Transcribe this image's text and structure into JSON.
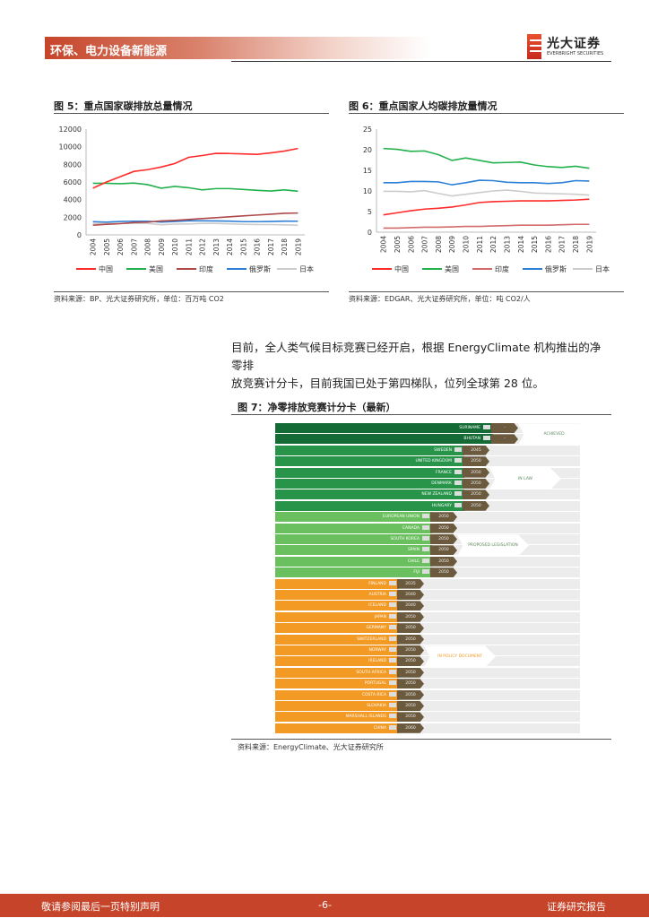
{
  "header": {
    "section": "环保、电力设备新能源",
    "logo_cn": "光大证券",
    "logo_en": "EVERBRIGHT SECURITIES"
  },
  "figure5": {
    "title": "图 5：重点国家碳排放总量情况",
    "source": "资料来源：BP、光大证券研究所，单位：百万吨 CO2"
  },
  "figure6": {
    "title": "图 6：重点国家人均碳排放量情况",
    "source": "资料来源：EDGAR、光大证券研究所，单位：吨 CO2/人"
  },
  "chart_data": [
    {
      "type": "line",
      "ylim": [
        0,
        12000
      ],
      "yticks": [
        0,
        2000,
        4000,
        6000,
        8000,
        10000,
        12000
      ],
      "grid": false,
      "legend": "bottom",
      "x": [
        "2004",
        "2005",
        "2006",
        "2007",
        "2008",
        "2009",
        "2010",
        "2011",
        "2012",
        "2013",
        "2014",
        "2015",
        "2016",
        "2017",
        "2018",
        "2019"
      ],
      "series": [
        {
          "name": "中国",
          "color": "#ff2a2a",
          "values": [
            5300,
            6000,
            6600,
            7200,
            7400,
            7700,
            8100,
            8800,
            9000,
            9250,
            9230,
            9180,
            9130,
            9300,
            9500,
            9800
          ]
        },
        {
          "name": "美国",
          "color": "#22b14c",
          "values": [
            5850,
            5850,
            5800,
            5880,
            5700,
            5300,
            5500,
            5350,
            5100,
            5250,
            5250,
            5150,
            5050,
            4980,
            5100,
            4950
          ]
        },
        {
          "name": "印度",
          "color": "#b04a4a",
          "values": [
            1100,
            1200,
            1270,
            1400,
            1450,
            1580,
            1650,
            1750,
            1850,
            1950,
            2050,
            2150,
            2250,
            2350,
            2450,
            2480
          ]
        },
        {
          "name": "俄罗斯",
          "color": "#2e7fd6",
          "values": [
            1500,
            1450,
            1520,
            1550,
            1550,
            1450,
            1520,
            1600,
            1600,
            1580,
            1560,
            1500,
            1500,
            1520,
            1560,
            1550
          ]
        },
        {
          "name": "日本",
          "color": "#cccccc",
          "values": [
            1300,
            1300,
            1300,
            1320,
            1300,
            1150,
            1230,
            1240,
            1300,
            1300,
            1250,
            1200,
            1180,
            1170,
            1140,
            1100
          ]
        }
      ]
    },
    {
      "type": "line",
      "ylim": [
        0,
        25
      ],
      "yticks": [
        0,
        5,
        10,
        15,
        20,
        25
      ],
      "grid": false,
      "legend": "bottom",
      "x": [
        "2004",
        "2005",
        "2006",
        "2007",
        "2008",
        "2009",
        "2010",
        "2011",
        "2012",
        "2013",
        "2014",
        "2015",
        "2016",
        "2017",
        "2018",
        "2019"
      ],
      "series": [
        {
          "name": "中国",
          "color": "#ff2a2a",
          "values": [
            4.2,
            4.7,
            5.2,
            5.6,
            5.8,
            6.1,
            6.6,
            7.2,
            7.4,
            7.5,
            7.6,
            7.6,
            7.6,
            7.7,
            7.8,
            8.0
          ]
        },
        {
          "name": "美国",
          "color": "#22b14c",
          "values": [
            20.3,
            20.1,
            19.6,
            19.7,
            18.8,
            17.4,
            18.0,
            17.4,
            16.8,
            16.9,
            17.0,
            16.3,
            15.9,
            15.7,
            16.0,
            15.5
          ]
        },
        {
          "name": "印度",
          "color": "#d46a6a",
          "values": [
            1.0,
            1.0,
            1.1,
            1.2,
            1.2,
            1.3,
            1.4,
            1.4,
            1.5,
            1.6,
            1.7,
            1.7,
            1.7,
            1.8,
            1.9,
            1.9
          ]
        },
        {
          "name": "俄罗斯",
          "color": "#2e7fd6",
          "values": [
            12.0,
            12.0,
            12.3,
            12.3,
            12.2,
            11.5,
            12.0,
            12.6,
            12.5,
            12.1,
            12.0,
            12.0,
            11.8,
            12.0,
            12.5,
            12.4
          ]
        },
        {
          "name": "日本",
          "color": "#cccccc",
          "values": [
            9.9,
            9.9,
            9.8,
            10.1,
            9.4,
            8.8,
            9.2,
            9.6,
            10.0,
            10.2,
            9.9,
            9.5,
            9.4,
            9.3,
            9.2,
            9.0
          ]
        }
      ]
    }
  ],
  "paragraph": [
    "目前，全人类气候目标竞赛已经开启，根据 EnergyClimate 机构推出的净零排",
    "放竞赛计分卡，目前我国已处于第四梯队，位列全球第 28 位。"
  ],
  "figure7": {
    "title": "图 7：净零排放竞赛计分卡（最新）",
    "source": "资料来源：EnergyClimate、光大证券研究所",
    "categories": [
      {
        "label": "ACHIEVED",
        "color": "#156b35",
        "rows": [
          [
            "SURINAME",
            "-"
          ],
          [
            "BHUTAN",
            "-"
          ]
        ]
      },
      {
        "label": "IN LAW",
        "color": "#27944a",
        "rows": [
          [
            "SWEDEN",
            "2045"
          ],
          [
            "UNITED KINGDOM",
            "2050"
          ],
          [
            "FRANCE",
            "2050"
          ],
          [
            "DENMARK",
            "2050"
          ],
          [
            "NEW ZEALAND",
            "2050"
          ],
          [
            "HUNGARY",
            "2050"
          ]
        ]
      },
      {
        "label": "PROPOSED LEGISLATION",
        "color": "#6abf5e",
        "rows": [
          [
            "EUROPEAN UNION",
            "2050"
          ],
          [
            "CANADA",
            "2050"
          ],
          [
            "SOUTH KOREA",
            "2050"
          ],
          [
            "SPAIN",
            "2050"
          ],
          [
            "CHILE",
            "2050"
          ],
          [
            "FIJI",
            "2050"
          ]
        ]
      },
      {
        "label": "IN POLICY DOCUMENT",
        "color": "#f39a25",
        "rows": [
          [
            "FINLAND",
            "2035"
          ],
          [
            "AUSTRIA",
            "2040"
          ],
          [
            "ICELAND",
            "2040"
          ],
          [
            "JAPAN",
            "2050"
          ],
          [
            "GERMANY",
            "2050"
          ],
          [
            "SWITZERLAND",
            "2050"
          ],
          [
            "NORWAY",
            "2050"
          ],
          [
            "IRELAND",
            "2050"
          ],
          [
            "SOUTH AFRICA",
            "2050"
          ],
          [
            "PORTUGAL",
            "2050"
          ],
          [
            "COSTA RICA",
            "2050"
          ],
          [
            "SLOVAKIA",
            "2050"
          ],
          [
            "MARSHALL ISLANDS",
            "2050"
          ],
          [
            "CHINA",
            "2060"
          ]
        ]
      }
    ]
  },
  "footer": {
    "left": "敬请参阅最后一页特别声明",
    "page": "-6-",
    "right": "证券研究报告"
  }
}
